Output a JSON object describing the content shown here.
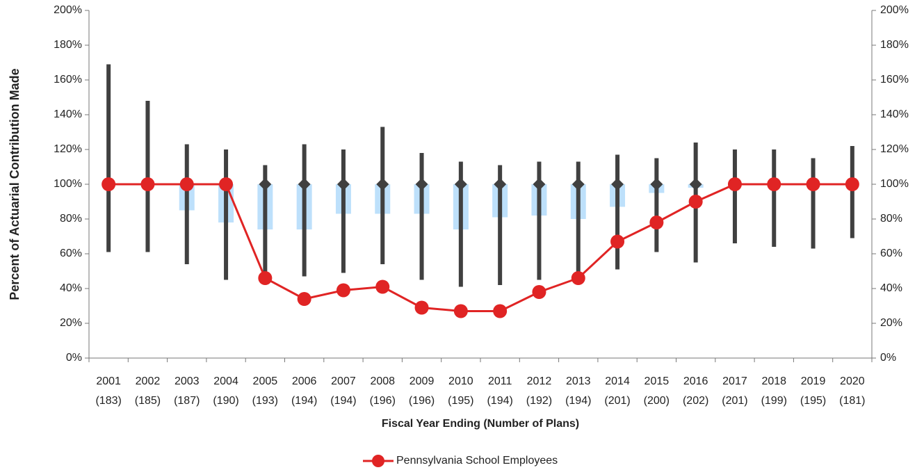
{
  "chart_data": {
    "type": "range_box_line",
    "y_axis_label": "Percent of Actuarial Contribution Made",
    "x_axis_label": "Fiscal Year Ending (Number of Plans)",
    "categories": [
      "2001",
      "2002",
      "2003",
      "2004",
      "2005",
      "2006",
      "2007",
      "2008",
      "2009",
      "2010",
      "2011",
      "2012",
      "2013",
      "2014",
      "2015",
      "2016",
      "2017",
      "2018",
      "2019",
      "2020"
    ],
    "plan_counts": [
      "(183)",
      "(185)",
      "(187)",
      "(190)",
      "(193)",
      "(194)",
      "(194)",
      "(196)",
      "(196)",
      "(195)",
      "(194)",
      "(192)",
      "(194)",
      "(201)",
      "(200)",
      "(202)",
      "(201)",
      "(199)",
      "(195)",
      "(181)"
    ],
    "ranges": {
      "color": "#404040",
      "low": [
        61,
        61,
        54,
        45,
        45,
        47,
        49,
        54,
        45,
        41,
        42,
        45,
        46,
        51,
        61,
        55,
        66,
        64,
        63,
        69
      ],
      "high": [
        169,
        148,
        123,
        120,
        111,
        123,
        120,
        133,
        118,
        113,
        111,
        113,
        113,
        117,
        115,
        124,
        120,
        120,
        115,
        122
      ]
    },
    "boxes": {
      "color": "#bde0fb",
      "low": [
        100,
        100,
        85,
        78,
        74,
        74,
        83,
        83,
        83,
        74,
        81,
        82,
        80,
        87,
        95,
        98,
        100,
        100,
        100,
        100
      ],
      "high": [
        100,
        100,
        100,
        100,
        100,
        100,
        100,
        100,
        100,
        100,
        100,
        100,
        100,
        100,
        100,
        100,
        100,
        100,
        100,
        100
      ]
    },
    "medians": {
      "color": "#404040",
      "values": [
        100,
        100,
        100,
        100,
        100,
        100,
        100,
        100,
        100,
        100,
        100,
        100,
        100,
        100,
        100,
        100,
        100,
        100,
        100,
        100
      ]
    },
    "series": [
      {
        "name": "Pennsylvania School Employees",
        "color": "#e02424",
        "values": [
          100,
          100,
          100,
          100,
          46,
          34,
          39,
          41,
          29,
          27,
          27,
          38,
          46,
          67,
          78,
          90,
          100,
          100,
          100,
          100
        ]
      }
    ],
    "ylim": [
      0,
      200
    ],
    "yticks": [
      {
        "value": 0,
        "label": "0%"
      },
      {
        "value": 20,
        "label": "20%"
      },
      {
        "value": 40,
        "label": "40%"
      },
      {
        "value": 60,
        "label": "60%"
      },
      {
        "value": 80,
        "label": "80%"
      },
      {
        "value": 100,
        "label": "100%"
      },
      {
        "value": 120,
        "label": "120%"
      },
      {
        "value": 140,
        "label": "140%"
      },
      {
        "value": 160,
        "label": "160%"
      },
      {
        "value": 180,
        "label": "180%"
      },
      {
        "value": 200,
        "label": "200%"
      }
    ],
    "y2lim": [
      0,
      200
    ],
    "y2ticks": [
      {
        "value": 0,
        "label": "0%"
      },
      {
        "value": 20,
        "label": "20%"
      },
      {
        "value": 40,
        "label": "40%"
      },
      {
        "value": 60,
        "label": "60%"
      },
      {
        "value": 80,
        "label": "80%"
      },
      {
        "value": 100,
        "label": "100%"
      },
      {
        "value": 120,
        "label": "120%"
      },
      {
        "value": 140,
        "label": "140%"
      },
      {
        "value": 160,
        "label": "160%"
      },
      {
        "value": 180,
        "label": "180%"
      },
      {
        "value": 200,
        "label": "200%"
      }
    ],
    "legend": "bottom"
  }
}
